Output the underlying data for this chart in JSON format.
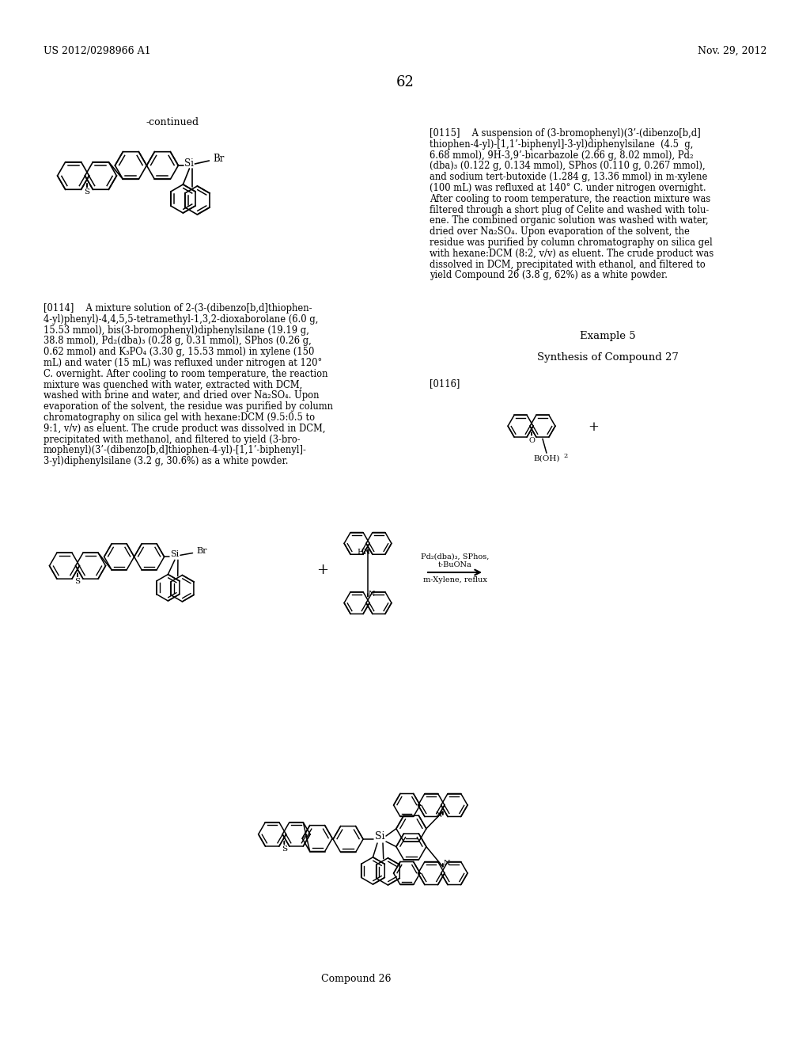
{
  "bg_color": "#ffffff",
  "header_left": "US 2012/0298966 A1",
  "header_right": "Nov. 29, 2012",
  "page_number": "62",
  "continued_label": "-continued",
  "body_fs": 8.3,
  "reaction_label1": "Pd₂(dba)₃, SPhos,",
  "reaction_label2": "t-BuONa",
  "reaction_label3": "m-Xylene, reflux",
  "compound_label": "Compound 26",
  "example5": "Example 5",
  "synthesis": "Synthesis of Compound 27",
  "para0114": "[0114]  A mixture solution of 2-(3-(dibenzo[b,d]thiophen-4-yl)phenyl)-4,4,5,5-tetramethyl-1,3,2-dioxaborolane (6.0 g, 15.53 mmol), bis(3-bromophenyl)diphenylsilane (19.19 g, 38.8 mmol), Pd₂(dba)₃ (0.28 g, 0.31 mmol), SPhos (0.26 g, 0.62 mmol) and K₃PO₄ (3.30 g, 15.53 mmol) in xylene (150 mL) and water (15 mL) was refluxed under nitrogen at 120° C. overnight. After cooling to room temperature, the reaction mixture was quenched with water, extracted with DCM, washed with brine and water, and dried over Na₂SO₄. Upon evaporation of the solvent, the residue was purified by column chromatography on silica gel with hexane:DCM (9.5:0.5 to 9:1, v/v) as eluent. The crude product was dissolved in DCM, precipitated with methanol, and filtered to yield (3-bromophenyl)(3’-(dibenzo[b,d]thiophen-4-yl)-[1,1’-biphenyl]-3-yl)diphenylsilane (3.2 g, 30.6%) as a white powder.",
  "para0115": "[0115]  A suspension of (3-bromophenyl)(3’-(dibenzo[b,d]thiophen-4-yl)-[1,1’-biphenyl]-3-yl)diphenylsilane (4.5 g, 6.68 mmol), 9H-3,9’-bicarbazole (2.66 g, 8.02 mmol), Pd₂(dba)₃ (0.122 g, 0.134 mmol), SPhos (0.110 g, 0.267 mmol), and sodium tert-butoxide (1.284 g, 13.36 mmol) in m-xylene (100 mL) was refluxed at 140° C. under nitrogen overnight. After cooling to room temperature, the reaction mixture was filtered through a short plug of Celite and washed with toluene. The combined organic solution was washed with water, dried over Na₂SO₄. Upon evaporation of the solvent, the residue was purified by column chromatography on silica gel with hexane:DCM (8:2, v/v) as eluent. The crude product was dissolved in DCM, precipitated with ethanol, and filtered to yield Compound 26 (3.8 g, 62%) as a white powder.",
  "para0116": "[0116]"
}
